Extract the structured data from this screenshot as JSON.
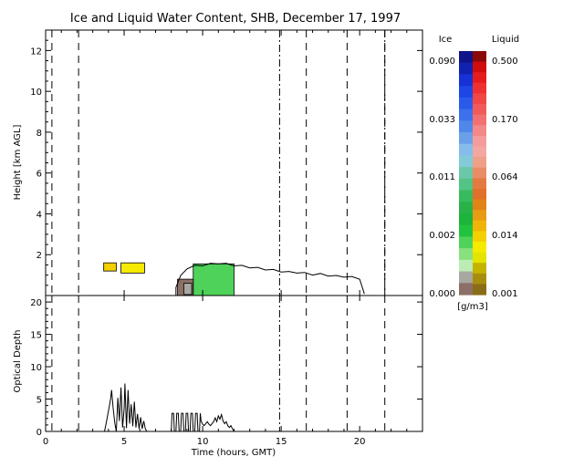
{
  "chart_data": [
    {
      "type": "heatmap",
      "title": "Ice and Liquid Water Content, SHB, December 17, 1997",
      "xlabel": "Time (hours, GMT)",
      "ylabel": "Height [km AGL]",
      "xlim": [
        0,
        24
      ],
      "ylim": [
        0,
        13
      ],
      "xticks": [
        0,
        5,
        10,
        15,
        20
      ],
      "yticks": [
        2,
        4,
        6,
        8,
        10,
        12
      ],
      "grid": false,
      "markers": {
        "dash": [
          0.4,
          2.1,
          16.6,
          19.2,
          21.6
        ],
        "dashdot": [
          14.9,
          21.6
        ]
      },
      "regions": [
        {
          "phase": "liquid",
          "level": 5,
          "t_start": 3.7,
          "t_end": 4.5,
          "h_bottom": 1.2,
          "h_top": 1.6
        },
        {
          "phase": "liquid",
          "level": 4,
          "t_start": 4.8,
          "t_end": 6.3,
          "h_bottom": 1.1,
          "h_top": 1.6
        },
        {
          "phase": "ice",
          "level": 4,
          "t_start": 9.4,
          "t_end": 12.0,
          "h_bottom": 0.0,
          "h_top": 1.55
        },
        {
          "phase": "ice",
          "level": 0,
          "t_start": 8.4,
          "t_end": 9.4,
          "h_bottom": 0.0,
          "h_top": 0.8
        },
        {
          "phase": "ice",
          "level": 1,
          "t_start": 8.8,
          "t_end": 9.3,
          "h_bottom": 0.05,
          "h_top": 0.6
        }
      ],
      "cloud_boundary": {
        "time": [
          8.3,
          8.6,
          9.0,
          9.5,
          10.0,
          10.5,
          11.0,
          11.5,
          12.0,
          12.5,
          13.0,
          13.5,
          14.0,
          14.5,
          15.0,
          15.5,
          16.0,
          16.5,
          17.0,
          17.5,
          18.0,
          18.5,
          19.0,
          19.5,
          20.0,
          20.3
        ],
        "top_km": [
          0.4,
          0.9,
          1.3,
          1.4,
          1.45,
          1.5,
          1.55,
          1.5,
          1.45,
          1.4,
          1.35,
          1.3,
          1.25,
          1.2,
          1.15,
          1.1,
          1.1,
          1.05,
          1.0,
          1.0,
          0.95,
          0.9,
          0.9,
          0.85,
          0.8,
          0.0
        ]
      },
      "colorbar": {
        "unit": "[g/m3]",
        "ice": {
          "label": "Ice",
          "tick_labels": [
            "0.090",
            "0.033",
            "0.011",
            "0.002",
            "0.000"
          ],
          "colors": [
            "#10148a",
            "#1222b0",
            "#1632d6",
            "#1c46e6",
            "#2a5aea",
            "#3c70ec",
            "#5088ea",
            "#6aa0ea",
            "#86bcec",
            "#84cad8",
            "#6ac8a8",
            "#52c484",
            "#3aba5e",
            "#28b248",
            "#1cb43a",
            "#22c23e",
            "#4ed25a",
            "#88e07e",
            "#bcecb4",
            "#a8a8a0",
            "#8c7068"
          ]
        },
        "liquid": {
          "label": "Liquid",
          "tick_labels": [
            "0.500",
            "0.170",
            "0.064",
            "0.014",
            "0.001"
          ],
          "colors": [
            "#8a0a0a",
            "#d00c0c",
            "#e41c1c",
            "#ee3030",
            "#f04646",
            "#f25a5a",
            "#f27070",
            "#f48888",
            "#f49c9c",
            "#f2a8a0",
            "#eea088",
            "#ea8c66",
            "#e47a42",
            "#e0702c",
            "#e08418",
            "#e89c14",
            "#f0b408",
            "#f4d000",
            "#f6ea00",
            "#e4e400",
            "#c4b400",
            "#a88e10",
            "#8a6c18"
          ]
        }
      }
    },
    {
      "type": "line",
      "xlabel": "Time (hours, GMT)",
      "ylabel": "Optical Depth",
      "xlim": [
        0,
        24
      ],
      "ylim": [
        0,
        21
      ],
      "xticks": [
        0,
        5,
        10,
        15,
        20
      ],
      "yticks": [
        0,
        5,
        10,
        15,
        20
      ],
      "grid": false,
      "series": [
        {
          "x": [
            3.75,
            3.85,
            3.95,
            4.05,
            4.15,
            4.2,
            4.3,
            4.4,
            4.5,
            4.6,
            4.7,
            4.8,
            4.9,
            5.0,
            5.05,
            5.15,
            5.25,
            5.35,
            5.45,
            5.55,
            5.65,
            5.75,
            5.85,
            5.95,
            6.05,
            6.15,
            6.25,
            6.35,
            6.45
          ],
          "y": [
            0,
            1.2,
            2.5,
            3.8,
            5.2,
            6.4,
            3.6,
            1.4,
            0,
            5.2,
            1.6,
            6.8,
            0.6,
            3.5,
            7.4,
            0.5,
            6.4,
            1.2,
            4.2,
            0.8,
            4.6,
            0.6,
            2.7,
            0.4,
            2.2,
            0.4,
            1.6,
            0.4,
            0
          ]
        },
        {
          "x": [
            8.0,
            8.05,
            8.15,
            8.2,
            8.3,
            8.35,
            8.45,
            8.5,
            8.6,
            8.65,
            8.75,
            8.8,
            8.9,
            8.95,
            9.05,
            9.1,
            9.2,
            9.25,
            9.35,
            9.4,
            9.5,
            9.55,
            9.65,
            9.7,
            9.8,
            9.85
          ],
          "y": [
            0,
            2.8,
            2.8,
            0,
            0,
            2.8,
            2.8,
            0,
            0,
            2.8,
            2.8,
            0,
            0,
            2.8,
            2.8,
            0,
            0,
            2.8,
            2.8,
            0,
            0,
            2.8,
            2.8,
            0,
            0,
            2.8
          ]
        },
        {
          "x": [
            9.85,
            9.9,
            10.0,
            10.1,
            10.2,
            10.3,
            10.4,
            10.5,
            10.6,
            10.7,
            10.8,
            10.9,
            11.0,
            11.1,
            11.2,
            11.3,
            11.4,
            11.5,
            11.6,
            11.7,
            11.8,
            11.9,
            12.0
          ],
          "y": [
            2.8,
            1.6,
            1.1,
            0.9,
            1.2,
            1.5,
            1.1,
            0.9,
            1.2,
            1.5,
            2.1,
            1.5,
            2.4,
            1.9,
            2.6,
            1.6,
            1.2,
            1.5,
            0.9,
            0.6,
            0.9,
            0.4,
            0
          ]
        }
      ],
      "markers": {
        "dash": [
          0.4,
          2.1,
          16.6,
          19.2,
          21.6
        ],
        "dashdot": [
          14.9
        ]
      }
    }
  ]
}
